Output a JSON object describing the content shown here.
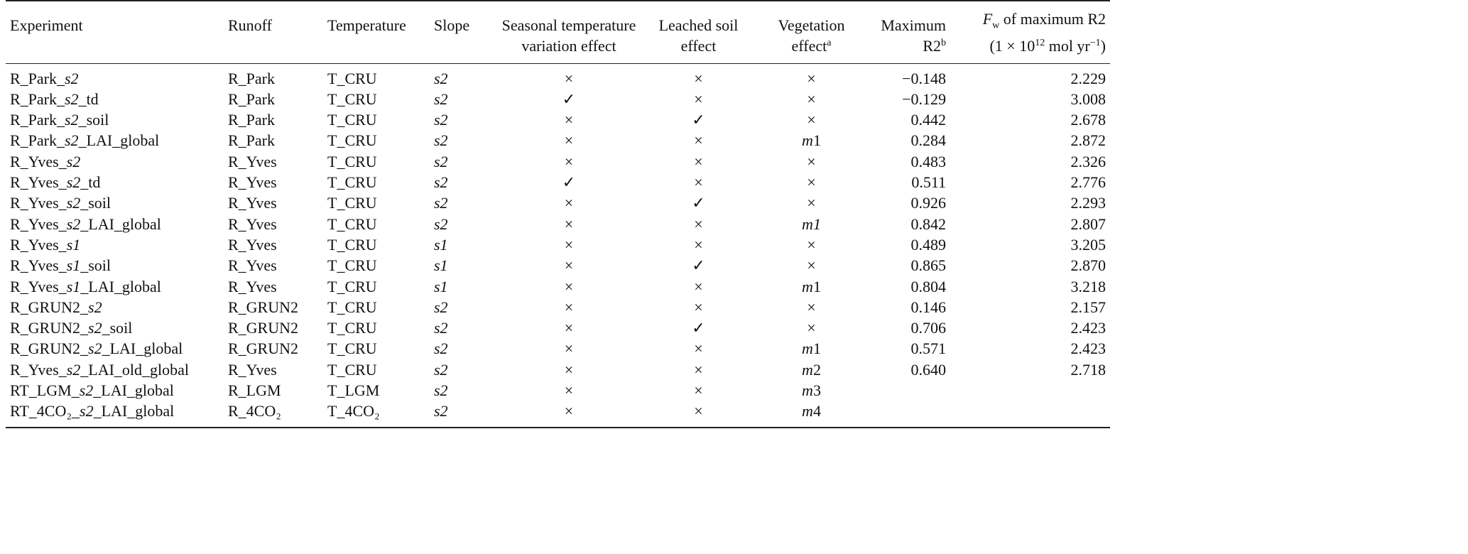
{
  "header": {
    "experiment": "Experiment",
    "runoff": "Runoff",
    "temperature": "Temperature",
    "slope": "Slope",
    "seasonal": [
      "Seasonal temperature",
      "variation effect"
    ],
    "leached": [
      "Leached soil",
      "effect"
    ],
    "vegetation": [
      "Vegetation",
      "effect",
      "a"
    ],
    "max_r2": [
      "Maximum",
      "R2",
      "b"
    ],
    "fw": {
      "symbol": "F",
      "sub": "w",
      "title": " of maximum R2",
      "unit_pre": "(1 × 10",
      "exp": "12",
      "unit_mid": " mol yr",
      "exp2": "−1",
      "unit_post": ")"
    }
  },
  "rows": [
    {
      "exp": [
        "R_Park_",
        "s2",
        ""
      ],
      "runoff": "R_Park",
      "temp": "T_CRU",
      "slope": "s2",
      "seasonal": "×",
      "leached": "×",
      "veg": "×",
      "r2": "−0.148",
      "fw": "2.229"
    },
    {
      "exp": [
        "R_Park_",
        "s2",
        "_td"
      ],
      "runoff": "R_Park",
      "temp": "T_CRU",
      "slope": "s2",
      "seasonal": "✓",
      "leached": "×",
      "veg": "×",
      "r2": "−0.129",
      "fw": "3.008"
    },
    {
      "exp": [
        "R_Park_",
        "s2",
        "_soil"
      ],
      "runoff": "R_Park",
      "temp": "T_CRU",
      "slope": "s2",
      "seasonal": "×",
      "leached": "✓",
      "veg": "×",
      "r2": "0.442",
      "fw": "2.678"
    },
    {
      "exp": [
        "R_Park_",
        "s2",
        "_LAI_global"
      ],
      "runoff": "R_Park",
      "temp": "T_CRU",
      "slope": "s2",
      "seasonal": "×",
      "leached": "×",
      "veg": "m1",
      "r2": "0.284",
      "fw": "2.872"
    },
    {
      "exp": [
        "R_Yves_",
        "s2",
        ""
      ],
      "runoff": "R_Yves",
      "temp": "T_CRU",
      "slope": "s2",
      "seasonal": "×",
      "leached": "×",
      "veg": "×",
      "r2": "0.483",
      "fw": "2.326"
    },
    {
      "exp": [
        "R_Yves_",
        "s2",
        "_td"
      ],
      "runoff": "R_Yves",
      "temp": "T_CRU",
      "slope": "s2",
      "seasonal": "✓",
      "leached": "×",
      "veg": "×",
      "r2": "0.511",
      "fw": "2.776"
    },
    {
      "exp": [
        "R_Yves_",
        "s2",
        "_soil"
      ],
      "runoff": "R_Yves",
      "temp": "T_CRU",
      "slope": "s2",
      "seasonal": "×",
      "leached": "✓",
      "veg": "×",
      "r2": "0.926",
      "fw": "2.293"
    },
    {
      "exp": [
        "R_Yves_",
        "s2",
        "_LAI_global"
      ],
      "runoff": "R_Yves",
      "temp": "T_CRU",
      "slope": "s2",
      "seasonal": "×",
      "leached": "×",
      "veg": "m1",
      "r2": "0.842",
      "fw": "2.807"
    },
    {
      "exp": [
        "R_Yves_",
        "s1",
        ""
      ],
      "runoff": "R_Yves",
      "temp": "T_CRU",
      "slope": "s1",
      "seasonal": "×",
      "leached": "×",
      "veg": "×",
      "r2": "0.489",
      "fw": "3.205"
    },
    {
      "exp": [
        "R_Yves_",
        "s1",
        "_soil"
      ],
      "runoff": "R_Yves",
      "temp": "T_CRU",
      "slope": "s1",
      "seasonal": "×",
      "leached": "✓",
      "veg": "×",
      "r2": "0.865",
      "fw": "2.870"
    },
    {
      "exp": [
        "R_Yves_",
        "s1",
        "_LAI_global"
      ],
      "runoff": "R_Yves",
      "temp": "T_CRU",
      "slope": "s1",
      "seasonal": "×",
      "leached": "×",
      "veg": "m1",
      "r2": "0.804",
      "fw": "3.218"
    },
    {
      "exp": [
        "R_GRUN2_",
        "s2",
        ""
      ],
      "runoff": "R_GRUN2",
      "temp": "T_CRU",
      "slope": "s2",
      "seasonal": "×",
      "leached": "×",
      "veg": "×",
      "r2": "0.146",
      "fw": "2.157"
    },
    {
      "exp": [
        "R_GRUN2_",
        "s2",
        "_soil"
      ],
      "runoff": "R_GRUN2",
      "temp": "T_CRU",
      "slope": "s2",
      "seasonal": "×",
      "leached": "✓",
      "veg": "×",
      "r2": "0.706",
      "fw": "2.423"
    },
    {
      "exp": [
        "R_GRUN2_",
        "s2",
        "_LAI_global"
      ],
      "runoff": "R_GRUN2",
      "temp": "T_CRU",
      "slope": "s2",
      "seasonal": "×",
      "leached": "×",
      "veg": "m1",
      "r2": "0.571",
      "fw": "2.423"
    },
    {
      "exp": [
        "R_Yves_",
        "s2",
        "_LAI_old_global"
      ],
      "runoff": "R_Yves",
      "temp": "T_CRU",
      "slope": "s2",
      "seasonal": "×",
      "leached": "×",
      "veg": "m2",
      "r2": "0.640",
      "fw": "2.718"
    },
    {
      "exp": [
        "RT_LGM_",
        "s2",
        "_LAI_global"
      ],
      "runoff": "R_LGM",
      "temp": "T_LGM",
      "slope": "s2",
      "seasonal": "×",
      "leached": "×",
      "veg": "m3",
      "r2": "",
      "fw": ""
    },
    {
      "exp": [
        "RT_4CO₂_",
        "s2",
        "_LAI_global"
      ],
      "runoff": "R_4CO₂",
      "temp": "T_4CO₂",
      "slope": "s2",
      "seasonal": "×",
      "leached": "×",
      "veg": "m4",
      "r2": "",
      "fw": ""
    }
  ]
}
